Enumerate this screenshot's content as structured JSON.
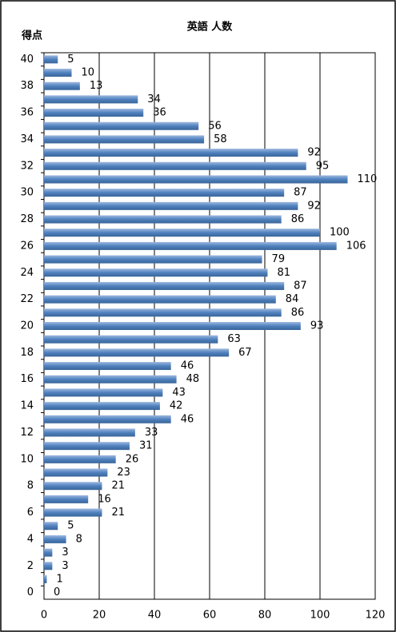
{
  "chart_data": {
    "type": "bar",
    "orientation": "horizontal",
    "title": "英語 人数",
    "y_label": "得点",
    "categories": [
      "40",
      null,
      "38",
      null,
      "36",
      null,
      "34",
      null,
      "32",
      null,
      "30",
      null,
      "28",
      null,
      "26",
      null,
      "24",
      null,
      "22",
      null,
      "20",
      null,
      "18",
      null,
      "16",
      null,
      "14",
      null,
      "12",
      null,
      "10",
      null,
      "8",
      null,
      "6",
      null,
      "4",
      null,
      "2",
      null,
      "0"
    ],
    "values": [
      5,
      10,
      13,
      34,
      36,
      56,
      58,
      92,
      95,
      110,
      87,
      92,
      86,
      100,
      106,
      79,
      81,
      87,
      84,
      86,
      93,
      63,
      67,
      46,
      48,
      43,
      42,
      46,
      33,
      31,
      26,
      23,
      21,
      16,
      21,
      5,
      8,
      3,
      3,
      1,
      0
    ],
    "color": "#4f81bd",
    "xlim": [
      0,
      120
    ],
    "xticks": [
      0,
      20,
      40,
      60,
      80,
      100,
      120
    ],
    "grid": true
  }
}
